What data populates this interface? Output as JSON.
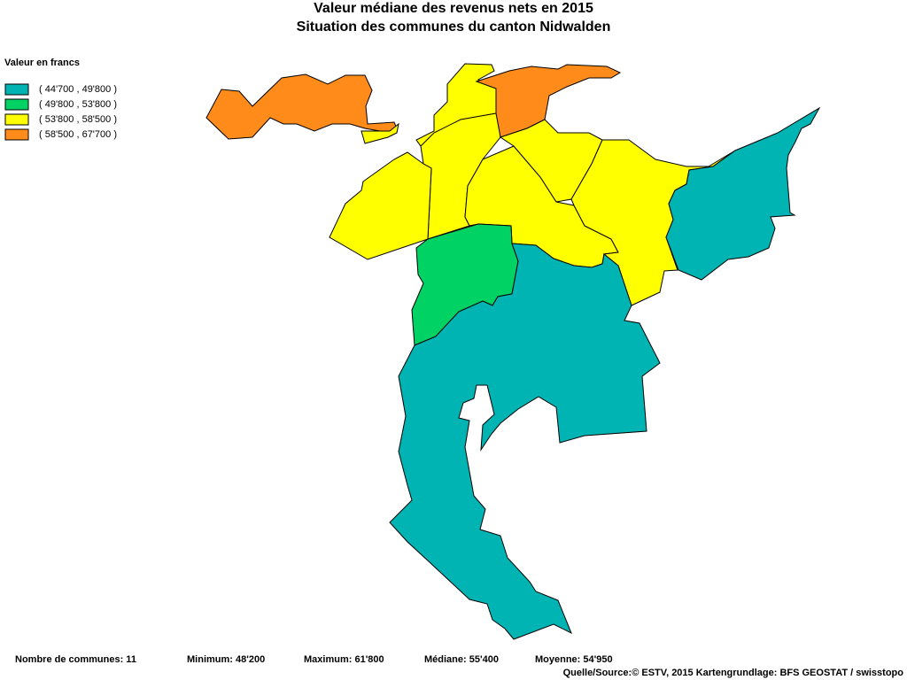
{
  "header": {
    "title": "Valeur médiane des revenus nets en 2015",
    "subtitle": "Situation des communes du canton Nidwalden"
  },
  "legend": {
    "title": "Valeur en francs",
    "items": [
      {
        "label": "( 44'700 , 49'800 )",
        "color": "#00b4b4"
      },
      {
        "label": "( 49'800 , 53'800 )",
        "color": "#00d264"
      },
      {
        "label": "( 53'800 , 58'500 )",
        "color": "#ffff00"
      },
      {
        "label": "( 58'500 , 67'700 )",
        "color": "#ff8c1a"
      }
    ]
  },
  "footer": {
    "stats": [
      "Nombre de communes: 11",
      "Minimum: 48'200",
      "Maximum: 61'800",
      "Médiane: 55'400",
      "Moyenne: 54'950"
    ],
    "source": "Quelle/Source:© ESTV, 2015 Kartengrundlage: BFS GEOSTAT / swisstopo"
  }
}
